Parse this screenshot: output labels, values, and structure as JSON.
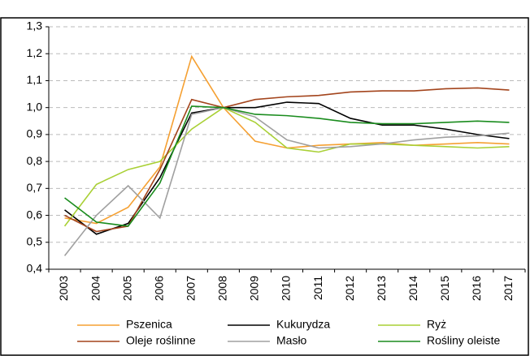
{
  "chart_data": {
    "type": "line",
    "categories": [
      "2003",
      "2004",
      "2005",
      "2006",
      "2007",
      "2008",
      "2009",
      "2010",
      "2011",
      "2012",
      "2013",
      "2014",
      "2015",
      "2016",
      "2017"
    ],
    "series": [
      {
        "name": "Pszenica",
        "color": "#f5a032",
        "values": [
          0.59,
          0.57,
          0.63,
          0.78,
          1.19,
          1.0,
          0.875,
          0.85,
          0.86,
          0.865,
          0.87,
          0.86,
          0.865,
          0.87,
          0.865
        ]
      },
      {
        "name": "Kukurydza",
        "color": "#000000",
        "values": [
          0.62,
          0.53,
          0.57,
          0.74,
          0.98,
          1.0,
          1.0,
          1.02,
          1.015,
          0.96,
          0.935,
          0.935,
          0.92,
          0.9,
          0.885
        ]
      },
      {
        "name": "Ryż",
        "color": "#a9d035",
        "values": [
          0.56,
          0.715,
          0.77,
          0.8,
          0.92,
          1.0,
          0.945,
          0.85,
          0.835,
          0.865,
          0.865,
          0.86,
          0.855,
          0.85,
          0.855
        ]
      },
      {
        "name": "Oleje roślinne",
        "color": "#a3441c",
        "values": [
          0.6,
          0.54,
          0.56,
          0.77,
          1.03,
          1.0,
          1.03,
          1.04,
          1.045,
          1.058,
          1.062,
          1.062,
          1.07,
          1.073,
          1.065
        ]
      },
      {
        "name": "Masło",
        "color": "#a0a0a0",
        "values": [
          0.45,
          0.6,
          0.71,
          0.59,
          0.975,
          1.0,
          0.965,
          0.88,
          0.85,
          0.855,
          0.865,
          0.88,
          0.89,
          0.895,
          0.905
        ]
      },
      {
        "name": "Rośliny oleiste",
        "color": "#1a8c1e",
        "values": [
          0.665,
          0.575,
          0.56,
          0.72,
          1.005,
          1.0,
          0.975,
          0.97,
          0.96,
          0.945,
          0.94,
          0.94,
          0.945,
          0.95,
          0.945
        ]
      }
    ],
    "ylim": [
      0.4,
      1.3
    ],
    "yticks": [
      {
        "value": 0.4,
        "label": "0,4"
      },
      {
        "value": 0.5,
        "label": "0,5"
      },
      {
        "value": 0.6,
        "label": "0,6"
      },
      {
        "value": 0.7,
        "label": "0,7"
      },
      {
        "value": 0.8,
        "label": "0,8"
      },
      {
        "value": 0.9,
        "label": "0,9"
      },
      {
        "value": 1.0,
        "label": "1,0"
      },
      {
        "value": 1.1,
        "label": "1,1"
      },
      {
        "value": 1.2,
        "label": "1,2"
      },
      {
        "value": 1.3,
        "label": "1,3"
      }
    ],
    "grid": true,
    "legend": "bottom"
  }
}
